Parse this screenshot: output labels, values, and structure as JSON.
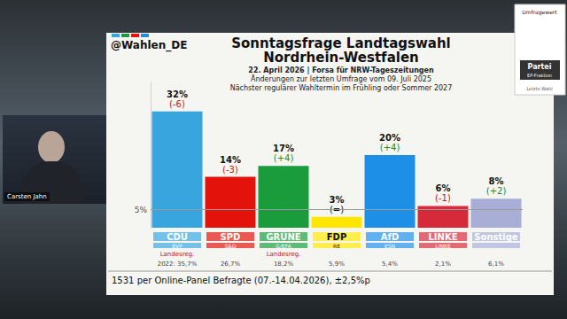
{
  "header": {
    "logo": "@Wahlen_DE"
  },
  "overlay": {
    "name": "Carsten Jahn"
  },
  "key": {
    "value": "Umfragewert",
    "party": "Partei",
    "ep": "EP-Fraktion",
    "last": "Letzte Wahl"
  },
  "chart_data": {
    "type": "bar",
    "title": [
      "Sonntagsfrage Landtagswahl",
      "Nordrhein-Westfalen"
    ],
    "subtitle": [
      "22. April 2026 | Forsa für NRW-Tageszeitungen",
      "Änderungen zur letzten Umfrage vom 09. Juli 2025",
      "Nächster regulärer Wahltermin im Frühling oder Sommer 2027"
    ],
    "categories": [
      "CDU",
      "SPD",
      "GRÜNE",
      "FDP",
      "AfD",
      "LINKE",
      "Sonstige"
    ],
    "ep_groups": [
      "EVP",
      "S&D",
      "G/EFA",
      "RE",
      "ESN",
      "LINKE",
      null
    ],
    "values": [
      32,
      14,
      17,
      3,
      20,
      6,
      8
    ],
    "value_labels": [
      "32%",
      "14%",
      "17%",
      "3%",
      "20%",
      "6%",
      "8%"
    ],
    "changes": [
      -6,
      -3,
      4,
      0,
      4,
      -1,
      2
    ],
    "change_labels": [
      "(-6)",
      "(-3)",
      "(+4)",
      "(=)",
      "(+4)",
      "(-1)",
      "(+2)"
    ],
    "government": [
      "Landesreg.",
      null,
      "Landesreg.",
      null,
      null,
      null,
      null
    ],
    "last_election": [
      35.7,
      26.7,
      18.2,
      5.9,
      5.4,
      2.1,
      6.1
    ],
    "last_election_labels": [
      "2022: 35,7%",
      "26,7%",
      "18,2%",
      "5,9%",
      "5,4%",
      "2,1%",
      "6,1%"
    ],
    "threshold": {
      "value": 5,
      "label": "5%"
    },
    "colors": [
      "#38a5de",
      "#e3120b",
      "#1a9b3c",
      "#ffe600",
      "#1e8fe6",
      "#d62a3a",
      "#a8aed6"
    ],
    "ylim": [
      0,
      40
    ],
    "tick_labels": false,
    "grid": false,
    "data_labels": true,
    "footer": "1531 per Online-Panel Befragte (07.-14.04.2026), ±2,5%p"
  }
}
